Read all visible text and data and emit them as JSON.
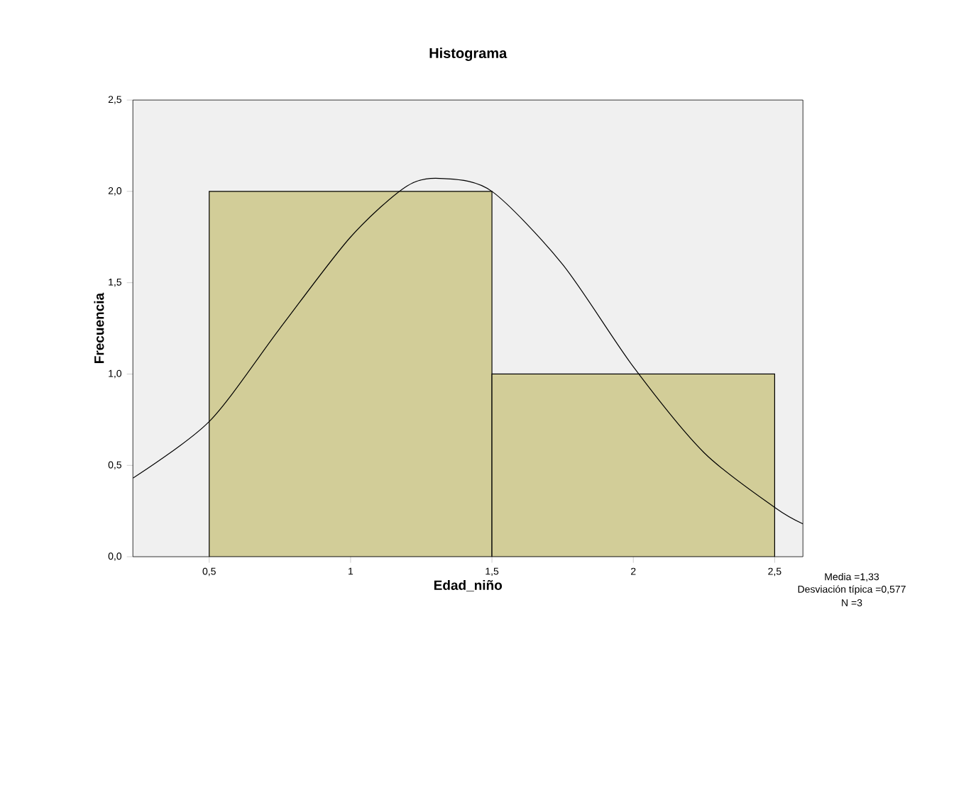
{
  "chart_data": {
    "type": "histogram",
    "title": "Histograma",
    "xlabel": "Edad_niño",
    "ylabel": "Frecuencia",
    "bins": [
      0.5,
      1.5,
      2.5
    ],
    "values": [
      2,
      1
    ],
    "color": "#d2cd98",
    "series": [
      {
        "type": "line",
        "color": "#000000",
        "x": [
          0.23,
          0.5,
          0.75,
          1.0,
          1.2,
          1.33,
          1.5,
          1.75,
          2.0,
          2.25,
          2.5,
          2.6
        ],
        "values": [
          0.43,
          0.74,
          1.25,
          1.75,
          2.03,
          2.07,
          2.0,
          1.6,
          1.04,
          0.57,
          0.27,
          0.18
        ]
      }
    ],
    "xlim": [
      0.23,
      2.6
    ],
    "ylim": [
      0,
      2.5
    ],
    "xticks": [
      {
        "value": 0.5,
        "label": "0,5"
      },
      1,
      {
        "value": 1.5,
        "label": "1,5"
      },
      2,
      {
        "value": 2.5,
        "label": "2,5"
      }
    ],
    "yticks": [
      {
        "value": 0,
        "label": "0,0"
      },
      {
        "value": 0.5,
        "label": "0,5"
      },
      {
        "value": 1,
        "label": "1,0"
      },
      {
        "value": 1.5,
        "label": "1,5"
      },
      {
        "value": 2,
        "label": "2,0"
      },
      {
        "value": 2.5,
        "label": "2,5"
      }
    ],
    "annotations": [
      "Media =1,33",
      "Desviación típica =0,577",
      "N =3"
    ],
    "grid": false,
    "marker": "none",
    "line_style": "solid"
  }
}
